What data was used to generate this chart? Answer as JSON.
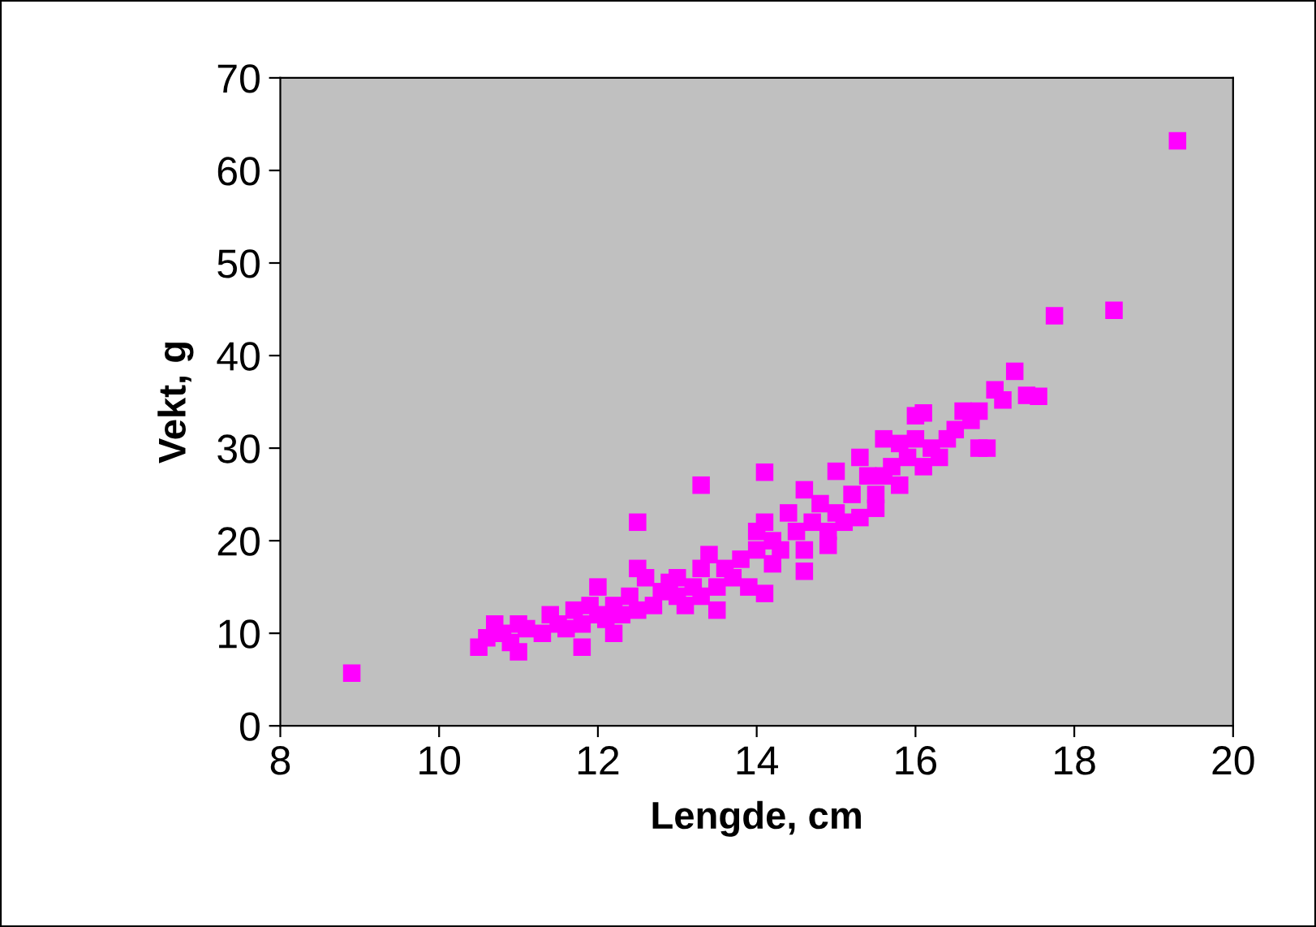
{
  "chart_data": {
    "type": "scatter",
    "xlabel": "Lengde, cm",
    "ylabel": "Vekt, g",
    "xlim": [
      8,
      20
    ],
    "xticks": [
      8,
      10,
      12,
      14,
      16,
      18,
      20
    ],
    "ylim": [
      0,
      70
    ],
    "yticks": [
      0,
      10,
      20,
      30,
      40,
      50,
      60,
      70
    ],
    "grid": false,
    "legend": false,
    "marker": "square",
    "series": [
      {
        "color": "#ff00ff",
        "x": [
          8.9,
          19.3,
          18.5,
          17.75,
          17.25,
          17.0,
          17.1,
          17.4,
          17.55,
          16.9,
          16.1,
          16.0,
          13.3,
          14.1,
          12.5,
          14.1,
          14.6,
          11.8,
          11.0,
          10.5,
          12.2,
          10.6,
          10.7,
          10.8,
          10.9,
          11.0,
          11.1,
          11.3,
          11.4,
          11.5,
          11.6,
          11.7,
          11.8,
          11.9,
          12.0,
          12.0,
          12.1,
          12.2,
          12.3,
          12.4,
          12.5,
          12.5,
          12.6,
          12.7,
          12.8,
          12.9,
          13.0,
          13.0,
          13.1,
          13.2,
          13.3,
          13.3,
          13.4,
          13.5,
          13.5,
          13.6,
          13.7,
          13.8,
          13.9,
          14.0,
          14.0,
          14.1,
          14.2,
          14.2,
          14.3,
          14.4,
          14.5,
          14.6,
          14.6,
          14.7,
          14.8,
          14.9,
          14.9,
          15.0,
          15.0,
          15.1,
          15.2,
          15.3,
          15.3,
          15.4,
          15.5,
          15.5,
          15.6,
          15.6,
          15.7,
          15.8,
          15.8,
          15.9,
          16.0,
          16.1,
          16.2,
          16.3,
          16.4,
          16.5,
          16.6,
          16.7,
          16.8,
          16.8
        ],
        "values": [
          5.7,
          63.2,
          44.9,
          44.3,
          38.3,
          36.3,
          35.2,
          35.7,
          35.6,
          30.0,
          33.8,
          33.5,
          26.0,
          27.4,
          22.0,
          14.3,
          16.7,
          8.5,
          8.0,
          8.5,
          10.0,
          9.5,
          11,
          10,
          9,
          11,
          10.5,
          10,
          12,
          11,
          10.5,
          12.5,
          11,
          13,
          15,
          12,
          11.5,
          13,
          12,
          14,
          17,
          12.5,
          16,
          13,
          14.5,
          15.5,
          14,
          16,
          13,
          15,
          17,
          14,
          18.5,
          15,
          12.5,
          17,
          16,
          18,
          15,
          19,
          21,
          22,
          17.5,
          20,
          19,
          23,
          21,
          25.5,
          19,
          22,
          24,
          21,
          19.5,
          27.5,
          23,
          22,
          25,
          29,
          22.5,
          27,
          25,
          23.5,
          31,
          27,
          28,
          30.5,
          26,
          29,
          31,
          28,
          30,
          29,
          31,
          32,
          34,
          33,
          34,
          30
        ]
      }
    ]
  }
}
